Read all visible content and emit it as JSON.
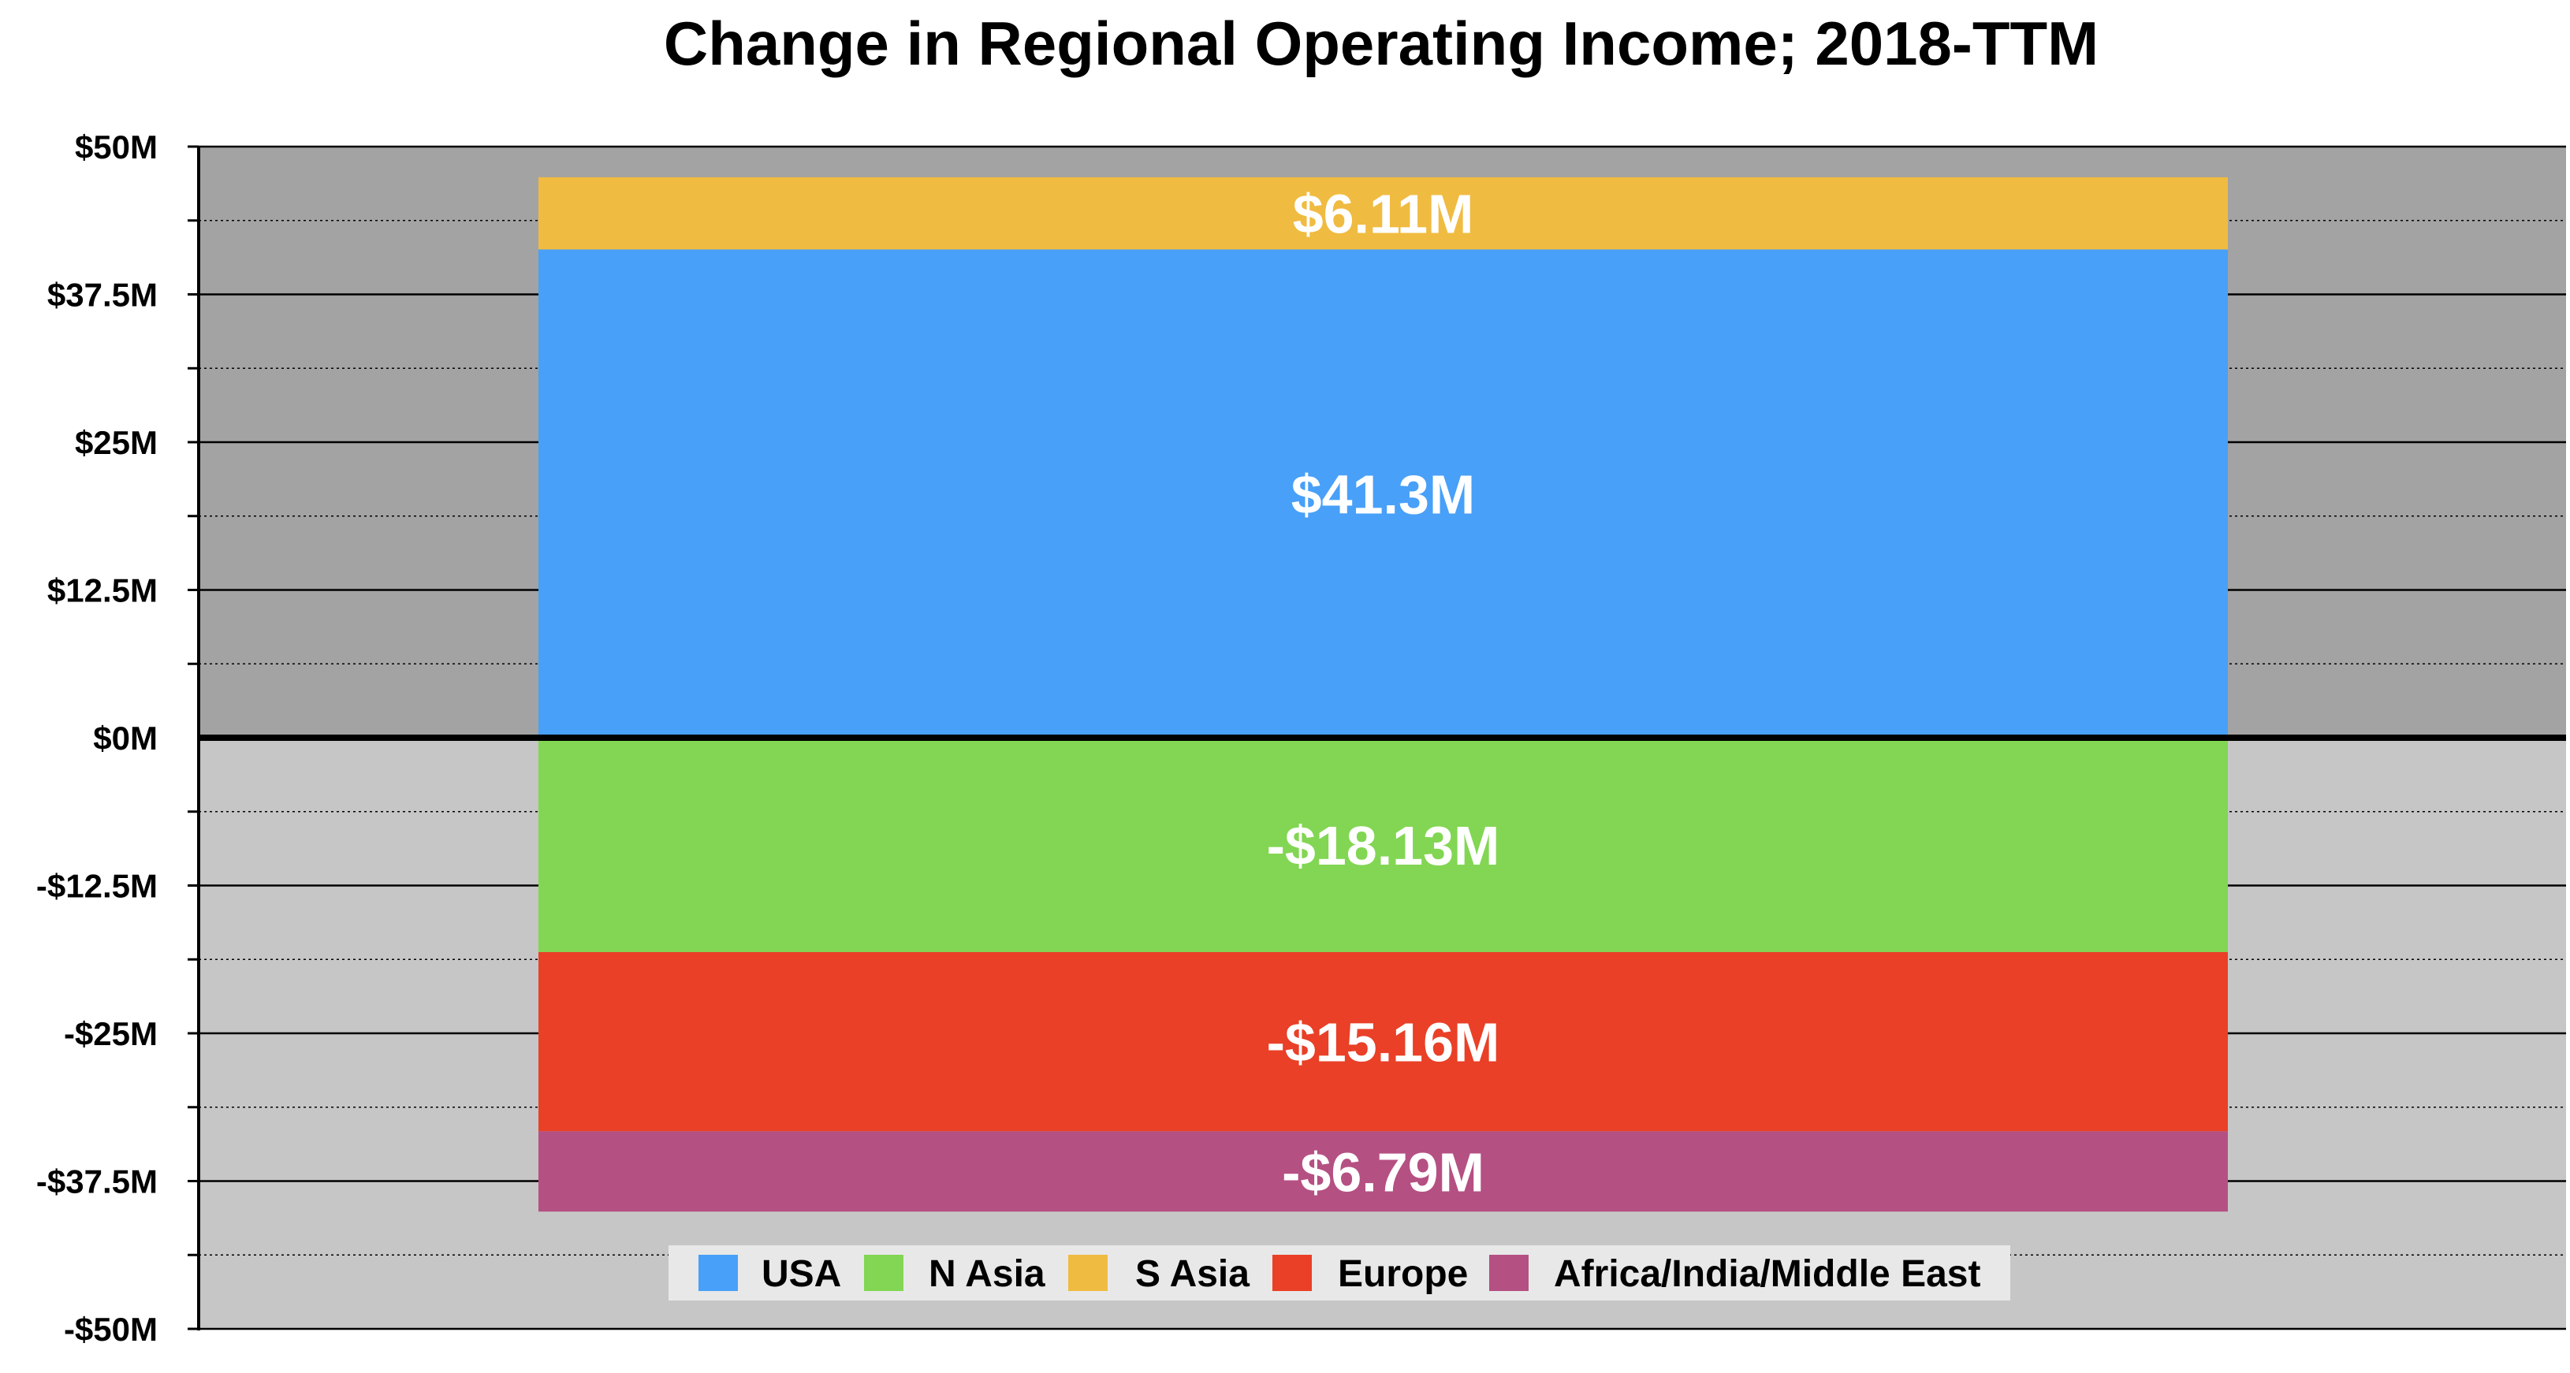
{
  "chart_data": {
    "type": "bar",
    "stacked": true,
    "title": "Change in Regional Operating Income; 2018-TTM",
    "xlabel": "",
    "ylabel": "",
    "ylim": [
      -50,
      50
    ],
    "yticks": [
      50,
      37.5,
      25,
      12.5,
      0,
      -12.5,
      -25,
      -37.5,
      -50
    ],
    "ytick_labels": [
      "$50M",
      "$37.5M",
      "$25M",
      "$12.5M",
      "$0M",
      "-$12.5M",
      "-$25M",
      "-$37.5M",
      "-$50M"
    ],
    "grid": true,
    "legend_position": "bottom-center",
    "series": [
      {
        "name": "USA",
        "value": 41.3,
        "label": "$41.3M",
        "color": "#48a0f8"
      },
      {
        "name": "N Asia",
        "value": -18.13,
        "label": "-$18.13M",
        "color": "#82d653"
      },
      {
        "name": "S Asia",
        "value": 6.11,
        "label": "$6.11M",
        "color": "#f0bb41"
      },
      {
        "name": "Europe",
        "value": -15.16,
        "label": "-$15.16M",
        "color": "#e94027"
      },
      {
        "name": "Africa/India/Middle East",
        "value": -6.79,
        "label": "-$6.79M",
        "color": "#b55083"
      }
    ],
    "background_colors": {
      "upper": "#a3a3a3",
      "lower": "#c6c6c6",
      "legend": "#e8e8e8"
    }
  }
}
